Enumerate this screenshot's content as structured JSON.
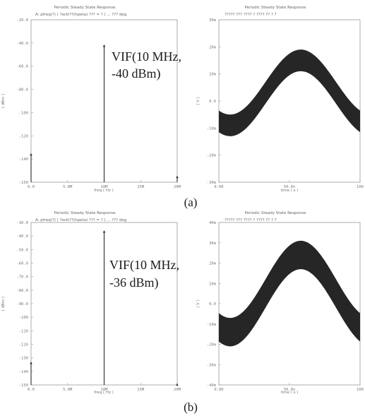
{
  "chart_data": [
    {
      "id": "a_spectrum",
      "type": "bar",
      "title": "Periodic Steady State Response",
      "subtitle": "A: pfreq(?) ( ?ectt??(hpeta) ??? = ? ) ... ??? deg",
      "xlabel": "freq ( Hz )",
      "ylabel": "( dBm )",
      "xlim": [
        0,
        20
      ],
      "ylim": [
        -150,
        -20
      ],
      "xticks": [
        "0.0",
        "5.0M",
        "10M",
        "15M",
        "20M"
      ],
      "yticks": [
        "-20.0",
        "-40.0",
        "-60.0",
        "-80.0",
        "-100",
        "-120",
        "-140",
        "-150"
      ],
      "points": [
        {
          "x": 0,
          "y": -127
        },
        {
          "x": 10,
          "y": -40
        },
        {
          "x": 20,
          "y": -145
        }
      ],
      "annotation": [
        "VIF(10   MHz,",
        "-40 dBm)"
      ]
    },
    {
      "id": "a_time",
      "type": "area",
      "title": "Periodic Steady State Response",
      "subtitle": "????? ??? ???? ? ???? ?? ? ?",
      "xlabel": "time ( s )",
      "ylabel": "( V )",
      "xlim": [
        0,
        100
      ],
      "ylim": [
        -30,
        30
      ],
      "xticks": [
        "0.00",
        "50.0n",
        "100"
      ],
      "yticks": [
        "30m",
        "20m",
        "10m",
        "0.0",
        "-10m",
        "-20m",
        "-30m"
      ],
      "envelope": {
        "offset": 3,
        "amplitude": 12,
        "period": 100,
        "peak_at": 58,
        "band": 4
      }
    },
    {
      "id": "b_spectrum",
      "type": "bar",
      "title": "Periodic Steady State Response",
      "subtitle": "A: pfreq(?) ( ?ectt??(hpeta) ??? = ? ) ... ??? deg",
      "xlabel": "freq ( Hz )",
      "ylabel": "( dBm )",
      "xlim": [
        0,
        20
      ],
      "ylim": [
        -150,
        -30
      ],
      "xticks": [
        "0.0",
        "5.0M",
        "10M",
        "15M",
        "20M"
      ],
      "yticks": [
        "-30.0",
        "-40.0",
        "-50.0",
        "-60.0",
        "-70.0",
        "-80.0",
        "-90.0",
        "-100",
        "-110",
        "-120",
        "-130",
        "-140",
        "-150"
      ],
      "points": [
        {
          "x": 0,
          "y": -133
        },
        {
          "x": 10,
          "y": -36
        },
        {
          "x": 20,
          "y": -149
        }
      ],
      "annotation": [
        "VIF(10   MHz,",
        "-36 dBm)"
      ]
    },
    {
      "id": "b_time",
      "type": "area",
      "title": "Periodic Steady State Response",
      "subtitle": "????? ??? ???? ? ???? ?? ? ?",
      "xlabel": "time ( s )",
      "ylabel": "( V )",
      "xlim": [
        0,
        100
      ],
      "ylim": [
        -40,
        40
      ],
      "xticks": [
        "0.00",
        "50.0n",
        "100"
      ],
      "yticks": [
        "40m",
        "30m",
        "20m",
        "10m",
        "0.0",
        "-10m",
        "-20m",
        "-30m",
        "-40m"
      ],
      "envelope": {
        "offset": 5,
        "amplitude": 19,
        "period": 100,
        "peak_at": 58,
        "band": 7
      }
    }
  ],
  "captions": {
    "a": "(a)",
    "b": "(b)"
  },
  "colors": {
    "trace": "#2a2a2a",
    "band": "#262626",
    "axis": "#9a9a9a"
  }
}
